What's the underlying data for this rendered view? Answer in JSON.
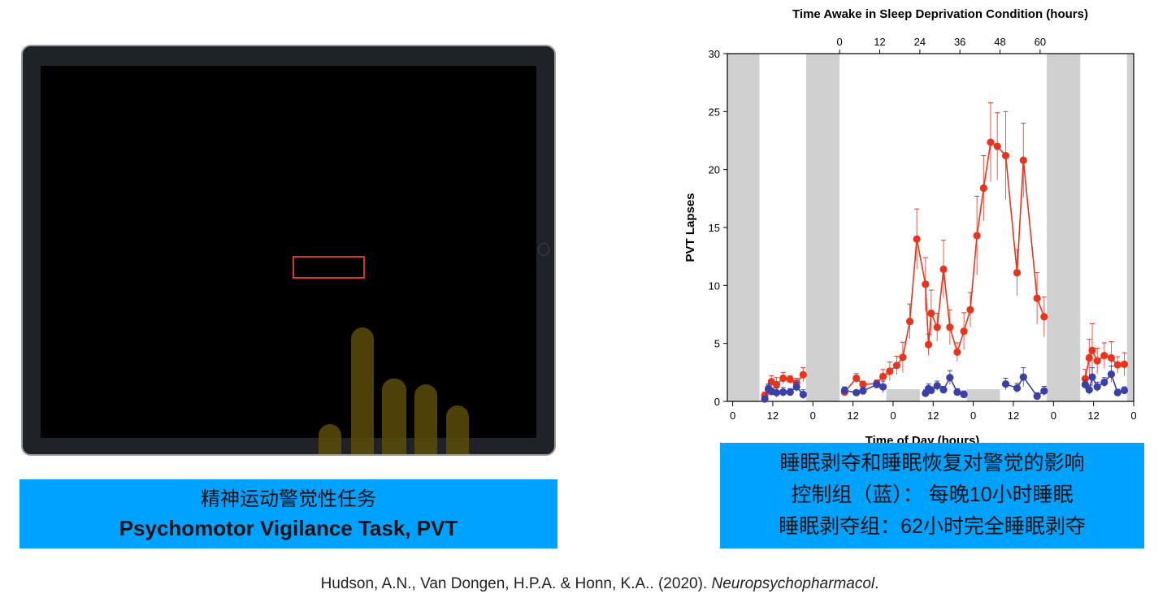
{
  "left_panel": {
    "caption_cn": "精神运动警觉性任务",
    "caption_en": "Psychomotor Vigilance Task, PVT"
  },
  "right_panel": {
    "caption_lines": [
      "睡眠剥夺和睡眠恢复对警觉的影响",
      "控制组（蓝）： 每晚10小时睡眠",
      "睡眠剥夺组：62小时完全睡眠剥夺"
    ]
  },
  "citation": {
    "authors": "Hudson, A.N., Van Dongen, H.P.A. & Honn, K.A.. (2020). ",
    "journal": "Neuropsychopharmacol",
    "end": "."
  },
  "colors": {
    "caption_bg": "#00a2ff",
    "deprivation": "#e8341c",
    "control": "#3b3fa8",
    "sleep_band": "#d0d0d0"
  },
  "chart_data": {
    "type": "line",
    "title": "Time Awake in Sleep Deprivation Condition (hours)",
    "ylabel": "PVT Lapses",
    "xlabel": "Time of Day (hours)",
    "xlim": [
      -1.6,
      120
    ],
    "ylim": [
      0,
      30
    ],
    "yticks": [
      0,
      5,
      10,
      15,
      20,
      25,
      30
    ],
    "xticks": [
      0,
      12,
      24,
      36,
      48,
      60,
      72,
      84,
      96,
      108,
      120
    ],
    "xtick_labels": [
      "0",
      "12",
      "0",
      "12",
      "0",
      "12",
      "0",
      "12",
      "0",
      "12",
      "0"
    ],
    "top_axis": {
      "ticks_at": [
        32,
        44,
        56,
        68,
        80,
        92
      ],
      "labels": [
        "0",
        "12",
        "24",
        "36",
        "48",
        "60"
      ]
    },
    "sleep_bands": [
      [
        -1.6,
        8
      ],
      [
        22,
        32
      ],
      [
        94,
        104
      ],
      [
        118,
        120
      ]
    ],
    "control_sleep_bands": [
      [
        46,
        56,
        1.05
      ],
      [
        70,
        80,
        1.05
      ]
    ],
    "series": [
      {
        "color": "#e8341c",
        "segments": [
          {
            "x": [
              9.6,
              10.7,
              11.6,
              13.1,
              15.1,
              17.2,
              19.1,
              21.1
            ],
            "y": [
              0.5,
              1.0,
              1.7,
              1.45,
              2.0,
              1.9,
              1.6,
              2.3
            ],
            "err": [
              0.3,
              0.4,
              0.5,
              0.6,
              0.5,
              0.3,
              0.4,
              0.6
            ]
          },
          {
            "x": [
              33.5,
              37.0,
              39.0,
              43.1,
              45.0,
              47.0,
              49.1,
              50.9,
              53.0,
              55.1,
              57.7,
              58.6,
              59.4,
              61.2,
              63.1,
              65.0,
              67.2,
              69.2,
              71.1,
              73.1,
              75.1,
              77.2,
              79.2,
              81.7,
              85.1,
              87.0,
              91.1,
              93.2
            ],
            "y": [
              0.8,
              2.0,
              1.45,
              1.55,
              2.15,
              2.6,
              3.1,
              3.8,
              6.9,
              14.0,
              10.1,
              4.9,
              7.6,
              6.4,
              11.4,
              6.4,
              4.25,
              6.05,
              7.9,
              14.3,
              18.4,
              22.35,
              22.0,
              21.2,
              11.1,
              20.8,
              8.9,
              7.3
            ],
            "err": [
              0.2,
              0.4,
              0.3,
              0.3,
              0.6,
              0.8,
              0.8,
              1.3,
              1.5,
              2.6,
              2.3,
              0.9,
              2.0,
              1.2,
              2.5,
              1.5,
              0.8,
              1.6,
              1.5,
              3.4,
              2.8,
              3.4,
              2.9,
              3.8,
              2.0,
              3.2,
              2.2,
              1.7
            ]
          },
          {
            "x": [
              105.5,
              106.7,
              107.6,
              109.1,
              111.2,
              113.3,
              115.2,
              117.2
            ],
            "y": [
              1.95,
              3.75,
              4.4,
              3.5,
              3.95,
              3.75,
              3.15,
              3.2
            ],
            "err": [
              0.8,
              1.6,
              2.3,
              1.1,
              1.1,
              1.4,
              0.7,
              1.0
            ]
          }
        ]
      },
      {
        "color": "#3b3fa8",
        "segments": [
          {
            "x": [
              9.6,
              10.7,
              11.6,
              13.1,
              15.1,
              17.2,
              19.1,
              21.1
            ],
            "y": [
              0.2,
              1.1,
              0.85,
              0.75,
              0.8,
              0.8,
              1.25,
              0.6
            ],
            "err": [
              0.2,
              0.4,
              0.3,
              0.4,
              0.4,
              0.3,
              0.4,
              0.4
            ]
          },
          {
            "x": [
              33.5,
              37.0,
              39.0,
              43.1,
              45.0
            ],
            "y": [
              0.95,
              0.75,
              0.9,
              1.45,
              1.25
            ],
            "err": [
              0.3,
              0.2,
              0.3,
              0.3,
              0.5
            ]
          },
          {
            "x": [
              57.7,
              58.6,
              59.4,
              61.2,
              63.1,
              65.0,
              67.2,
              69.2
            ],
            "y": [
              0.7,
              1.1,
              0.95,
              1.35,
              1.0,
              2.05,
              0.8,
              0.6
            ],
            "err": [
              0.3,
              0.4,
              0.3,
              0.4,
              0.3,
              0.6,
              0.3,
              0.3
            ]
          },
          {
            "x": [
              81.7,
              85.1,
              87.0,
              91.1,
              93.2
            ],
            "y": [
              1.5,
              1.15,
              2.1,
              0.45,
              0.9
            ],
            "err": [
              0.5,
              0.4,
              0.8,
              0.3,
              0.4
            ]
          },
          {
            "x": [
              105.5,
              106.7,
              107.6,
              109.1,
              111.2,
              113.3,
              115.2,
              117.2
            ],
            "y": [
              1.45,
              1.0,
              2.1,
              1.25,
              1.65,
              2.35,
              0.75,
              0.95
            ],
            "err": [
              0.4,
              0.4,
              0.8,
              0.4,
              0.4,
              0.7,
              0.3,
              0.3
            ]
          }
        ]
      }
    ]
  }
}
